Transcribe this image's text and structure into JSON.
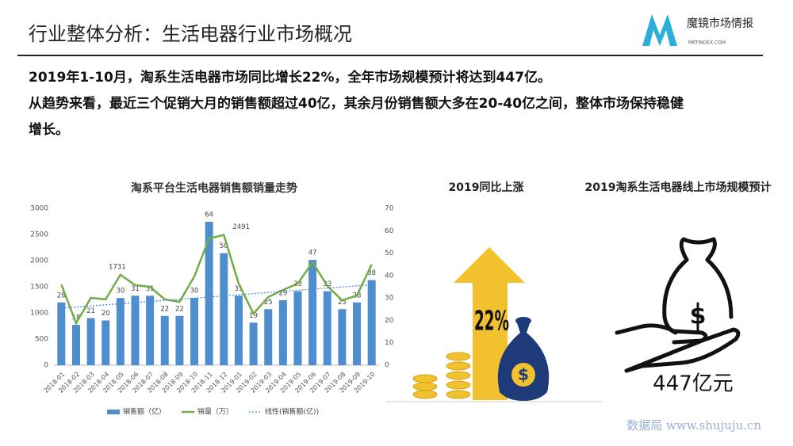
{
  "header": {
    "title": "行业整体分析：生活电器行业市场概况",
    "logo_name": "魔镜市场情报",
    "logo_url": "MKTINDEX.COM"
  },
  "summary": [
    "2019年1-10月，淘系生活电器市场同比增长22%，全年市场规模预计将达到447亿。",
    "从趋势来看，最近三个促销大月的销售额超过40亿，其余月份销售额大多在20-40亿之间，整体市场保持稳健",
    "增长。"
  ],
  "chart_data": {
    "type": "combo",
    "title": "淘系平台生活电器销售额销量走势",
    "categories": [
      "2018-01",
      "2018-02",
      "2018-03",
      "2018-04",
      "2018-05",
      "2018-06",
      "2018-07",
      "2018-08",
      "2018-09",
      "2018-10",
      "2018-11",
      "2018-12",
      "2019-01",
      "2019-02",
      "2019-03",
      "2019-04",
      "2019-05",
      "2019-06",
      "2019-07",
      "2019-08",
      "2019-09",
      "2019-10"
    ],
    "series": [
      {
        "name": "销售额（亿）",
        "type": "bar",
        "axis": "y2",
        "color": "#4e8ecf",
        "values": [
          28,
          18,
          21,
          20,
          30,
          31,
          31,
          22,
          22,
          30,
          64,
          50,
          31,
          19,
          25,
          29,
          33,
          47,
          33,
          25,
          28,
          38
        ]
      },
      {
        "name": "销量（万）",
        "type": "line",
        "color": "#72ac48",
        "values": [
          1545,
          803,
          1288,
          1258,
          1731,
          1530,
          1500,
          1258,
          1212,
          1697,
          2424,
          2491,
          1560,
          985,
          1303,
          1440,
          1560,
          1970,
          1515,
          1242,
          1333,
          1924
        ],
        "value_labels": [
          null,
          null,
          null,
          null,
          "1731",
          null,
          null,
          null,
          null,
          null,
          null,
          "2491",
          null,
          null,
          null,
          null,
          null,
          null,
          null,
          null,
          null,
          null
        ]
      },
      {
        "name": "线性(销售额(亿))",
        "type": "trend",
        "axis": "y2",
        "color": "#4e8ecf"
      }
    ],
    "ylim": [
      0,
      3000
    ],
    "yticks": [
      0,
      500,
      1000,
      1500,
      2000,
      2500,
      3000
    ],
    "y2lim": [
      0,
      70
    ],
    "y2ticks": [
      0,
      10,
      20,
      30,
      40,
      50,
      60,
      70
    ],
    "legend": "bottom"
  },
  "growth": {
    "title": "2019同比上涨",
    "value": "22%"
  },
  "forecast": {
    "title": "2019淘系生活电器线上市场规模预计",
    "value": "447亿元"
  },
  "watermark": "数据局  www.shujuju.cn"
}
